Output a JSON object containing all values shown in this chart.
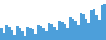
{
  "values": [
    55,
    48,
    62,
    58,
    52,
    45,
    60,
    57,
    50,
    43,
    58,
    55,
    53,
    46,
    62,
    60,
    55,
    50,
    65,
    63,
    58,
    52,
    68,
    66,
    63,
    56,
    75,
    73,
    68,
    62,
    82,
    80,
    72,
    65,
    88,
    90,
    78,
    70,
    95,
    98
  ],
  "bar_color": "#4d9fda",
  "background_color": "#ffffff",
  "ylim_min": 35,
  "ylim_max": 105
}
